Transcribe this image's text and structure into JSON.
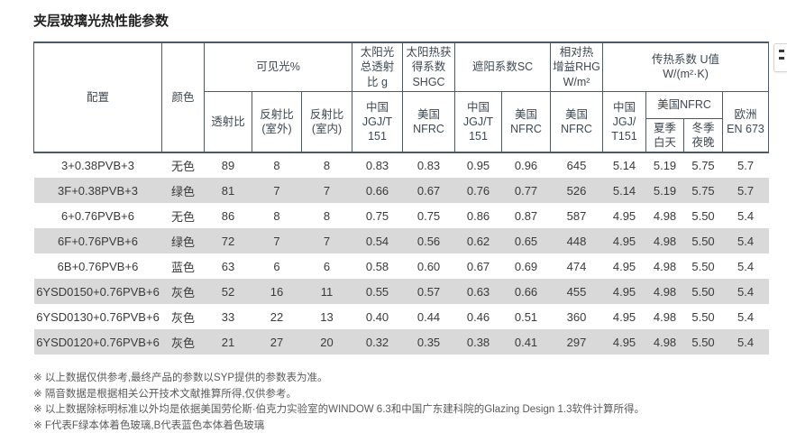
{
  "page": {
    "title": "夹层玻璃光热性能参数"
  },
  "table": {
    "header": {
      "config": "配置",
      "color": "颜色",
      "visible_light": "可见光%",
      "transmittance": "透射比",
      "reflectance_outdoor": "反射比\n(室外)",
      "reflectance_indoor": "反射比\n(室内)",
      "solar_g": "太阳光\n总透射\n比 g",
      "shgc": "太阳热获\n得系数\nSHGC",
      "sc": "遮阳系数SC",
      "rhg": "相对热\n增益RHG\nW/m²",
      "u_value": "传热系数 U值\nW/(m²·K)",
      "china_jgjt151": "中国\nJGJ/T\n151",
      "us_nfrc": "美国\nNFRC",
      "china_jgjt151_u": "中国\nJGJ/\nT151",
      "us_nfrc_u": "美国NFRC",
      "summer_day": "夏季\n白天",
      "winter_night": "冬季\n夜晚",
      "europe_en673": "欧洲\nEN 673"
    },
    "rows": [
      {
        "config": "3+0.38PVB+3",
        "color": "无色",
        "values": [
          "89",
          "8",
          "8",
          "0.83",
          "0.83",
          "0.95",
          "0.96",
          "645",
          "5.14",
          "5.19",
          "5.75",
          "5.7"
        ]
      },
      {
        "config": "3F+0.38PVB+3",
        "color": "绿色",
        "values": [
          "81",
          "7",
          "7",
          "0.66",
          "0.67",
          "0.76",
          "0.77",
          "526",
          "5.14",
          "5.19",
          "5.75",
          "5.7"
        ]
      },
      {
        "config": "6+0.76PVB+6",
        "color": "无色",
        "values": [
          "86",
          "8",
          "8",
          "0.75",
          "0.75",
          "0.86",
          "0.87",
          "587",
          "4.95",
          "4.98",
          "5.50",
          "5.4"
        ]
      },
      {
        "config": "6F+0.76PVB+6",
        "color": "绿色",
        "values": [
          "72",
          "7",
          "7",
          "0.54",
          "0.56",
          "0.62",
          "0.65",
          "448",
          "4.95",
          "4.98",
          "5.50",
          "5.4"
        ]
      },
      {
        "config": "6B+0.76PVB+6",
        "color": "蓝色",
        "values": [
          "63",
          "6",
          "6",
          "0.58",
          "0.60",
          "0.67",
          "0.69",
          "474",
          "4.95",
          "4.98",
          "5.50",
          "5.4"
        ]
      },
      {
        "config": "6YSD0150+0.76PVB+6",
        "color": "灰色",
        "values": [
          "52",
          "16",
          "11",
          "0.55",
          "0.57",
          "0.63",
          "0.66",
          "455",
          "4.95",
          "4.98",
          "5.50",
          "5.4"
        ]
      },
      {
        "config": "6YSD0130+0.76PVB+6",
        "color": "灰色",
        "values": [
          "33",
          "22",
          "13",
          "0.40",
          "0.44",
          "0.46",
          "0.51",
          "360",
          "4.95",
          "4.98",
          "5.50",
          "5.4"
        ]
      },
      {
        "config": "6YSD0120+0.76PVB+6",
        "color": "灰色",
        "values": [
          "21",
          "27",
          "20",
          "0.32",
          "0.35",
          "0.38",
          "0.41",
          "297",
          "4.95",
          "4.98",
          "5.50",
          "5.4"
        ]
      }
    ],
    "stripe_color": "#d9d9d9",
    "border_color": "#4d5a64"
  },
  "notes": [
    "※ 以上数据仅供参考,最终产品的参数以SYP提供的参数表为准。",
    "※ 隔音数据是根据相关公开技术文献推算所得,仅供参考。",
    "※ 以上数据除标明标准以外均是依据美国劳伦斯·伯克力实验室的WINDOW 6.3和中国广东建科院的Glazing Design 1.3软件计算所得。",
    "※ F代表F绿本体着色玻璃,B代表蓝色本体着色玻璃"
  ],
  "side_widget": {
    "icon": "list-icon"
  }
}
